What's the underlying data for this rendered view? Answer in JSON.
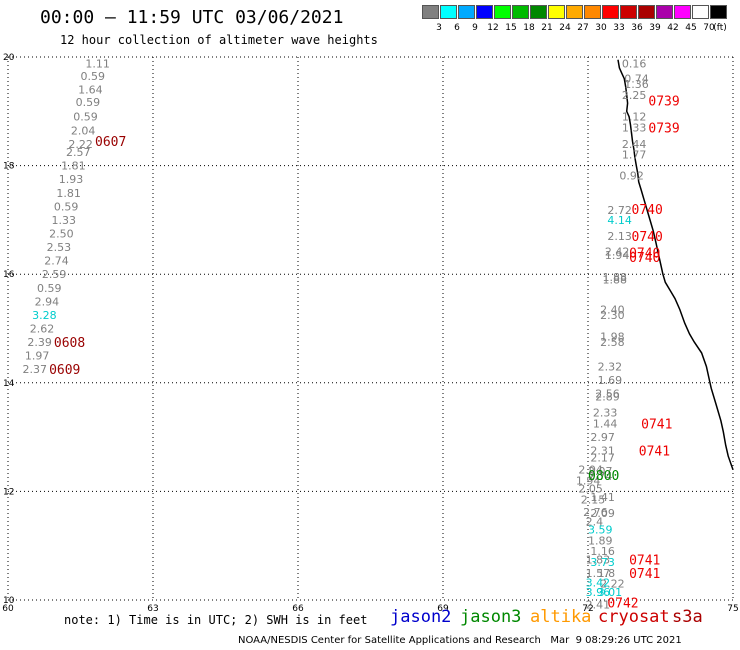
{
  "title": "00:00 – 11:59 UTC 03/06/2021",
  "subtitle": "12 hour collection of altimeter wave heights",
  "legend": {
    "colors": [
      "#808080",
      "#00ffff",
      "#00aaff",
      "#0000ff",
      "#00ff00",
      "#00bb00",
      "#008800",
      "#ffff00",
      "#ffaa00",
      "#ff8800",
      "#ff0000",
      "#cc0000",
      "#aa0000",
      "#aa00aa",
      "#ff00ff",
      "#ffffff",
      "#000000"
    ],
    "labels": [
      "3",
      "6",
      "9",
      "12",
      "15",
      "18",
      "21",
      "24",
      "27",
      "30",
      "33",
      "36",
      "39",
      "42",
      "45",
      "70",
      "(ft)"
    ]
  },
  "axes": {
    "x_ticks": [
      "60",
      "63",
      "66",
      "69",
      "72",
      "75"
    ],
    "y_ticks": [
      "10",
      "12",
      "14",
      "16",
      "18",
      "20"
    ],
    "x_range": [
      60,
      75
    ],
    "y_range": [
      10,
      20
    ]
  },
  "note": "note: 1) Time is in UTC; 2) SWH is in feet",
  "missions": [
    {
      "name": "jason2",
      "color": "#0000cc"
    },
    {
      "name": "jason3",
      "color": "#008800"
    },
    {
      "name": "altika",
      "color": "#ff9900"
    },
    {
      "name": "cryosat",
      "color": "#cc0000"
    },
    {
      "name": "s3a",
      "color": "#aa0000"
    }
  ],
  "credit": "NOAA/NESDIS Center for Satellite Applications and Research   Mar  9 08:29:26 UTC 2021",
  "track_west": {
    "color_default": "#808080",
    "points": [
      {
        "lon": 61.6,
        "lat": 19.88,
        "v": "1.11"
      },
      {
        "lon": 61.5,
        "lat": 19.65,
        "v": "0.59"
      },
      {
        "lon": 61.45,
        "lat": 19.4,
        "v": "1.64"
      },
      {
        "lon": 61.4,
        "lat": 19.17,
        "v": "0.59"
      },
      {
        "lon": 61.35,
        "lat": 18.9,
        "v": "0.59"
      },
      {
        "lon": 61.3,
        "lat": 18.65,
        "v": "2.04"
      },
      {
        "lon": 61.25,
        "lat": 18.4,
        "v": "2.22"
      },
      {
        "lon": 61.2,
        "lat": 18.25,
        "v": "2.57"
      },
      {
        "lon": 61.1,
        "lat": 18.0,
        "v": "1.81"
      },
      {
        "lon": 61.05,
        "lat": 17.75,
        "v": "1.93"
      },
      {
        "lon": 61.0,
        "lat": 17.5,
        "v": "1.81"
      },
      {
        "lon": 60.95,
        "lat": 17.25,
        "v": "0.59"
      },
      {
        "lon": 60.9,
        "lat": 17.0,
        "v": "1.33"
      },
      {
        "lon": 60.85,
        "lat": 16.75,
        "v": "2.50"
      },
      {
        "lon": 60.8,
        "lat": 16.5,
        "v": "2.53"
      },
      {
        "lon": 60.75,
        "lat": 16.25,
        "v": "2.74"
      },
      {
        "lon": 60.7,
        "lat": 16.0,
        "v": "2.59"
      },
      {
        "lon": 60.6,
        "lat": 15.75,
        "v": "0.59"
      },
      {
        "lon": 60.55,
        "lat": 15.5,
        "v": "2.94"
      },
      {
        "lon": 60.5,
        "lat": 15.25,
        "v": "3.28",
        "c": "#00cccc"
      },
      {
        "lon": 60.45,
        "lat": 15.0,
        "v": "2.62"
      },
      {
        "lon": 60.4,
        "lat": 14.75,
        "v": "2.39"
      },
      {
        "lon": 60.35,
        "lat": 14.5,
        "v": "1.97"
      },
      {
        "lon": 60.3,
        "lat": 14.25,
        "v": "2.37"
      }
    ],
    "times": [
      {
        "lon": 61.8,
        "lat": 18.45,
        "t": "0607",
        "c": "#990000"
      },
      {
        "lon": 60.95,
        "lat": 14.75,
        "t": "0608",
        "c": "#990000"
      },
      {
        "lon": 60.85,
        "lat": 14.25,
        "t": "0609",
        "c": "#990000"
      }
    ]
  },
  "track_east": {
    "color_default": "#808080",
    "points": [
      {
        "lon": 72.7,
        "lat": 19.88,
        "v": "0.16"
      },
      {
        "lon": 72.75,
        "lat": 19.6,
        "v": "0.74"
      },
      {
        "lon": 72.75,
        "lat": 19.5,
        "v": "1.36"
      },
      {
        "lon": 72.7,
        "lat": 19.3,
        "v": "2.25"
      },
      {
        "lon": 72.7,
        "lat": 18.9,
        "v": "1.12"
      },
      {
        "lon": 72.7,
        "lat": 18.7,
        "v": "1.33"
      },
      {
        "lon": 72.7,
        "lat": 18.4,
        "v": "2.44"
      },
      {
        "lon": 72.7,
        "lat": 18.2,
        "v": "1.77"
      },
      {
        "lon": 72.65,
        "lat": 17.82,
        "v": "0.92"
      },
      {
        "lon": 72.4,
        "lat": 17.18,
        "v": "2.72"
      },
      {
        "lon": 72.4,
        "lat": 17.0,
        "v": "4.14",
        "c": "#00cccc"
      },
      {
        "lon": 72.4,
        "lat": 16.7,
        "v": "2.13"
      },
      {
        "lon": 72.35,
        "lat": 16.42,
        "v": "2.42"
      },
      {
        "lon": 72.35,
        "lat": 16.35,
        "v": "1.94"
      },
      {
        "lon": 72.3,
        "lat": 15.95,
        "v": "1.88"
      },
      {
        "lon": 72.3,
        "lat": 15.9,
        "v": "1.88"
      },
      {
        "lon": 72.25,
        "lat": 15.35,
        "v": "2.40"
      },
      {
        "lon": 72.25,
        "lat": 15.25,
        "v": "2.30"
      },
      {
        "lon": 72.25,
        "lat": 14.85,
        "v": "1.98"
      },
      {
        "lon": 72.25,
        "lat": 14.75,
        "v": "2.58"
      },
      {
        "lon": 72.2,
        "lat": 14.3,
        "v": "2.32"
      },
      {
        "lon": 72.2,
        "lat": 14.05,
        "v": "1.69"
      },
      {
        "lon": 72.15,
        "lat": 13.8,
        "v": "2.56"
      },
      {
        "lon": 72.15,
        "lat": 13.75,
        "v": "2.89"
      },
      {
        "lon": 72.1,
        "lat": 13.45,
        "v": "2.33"
      },
      {
        "lon": 72.1,
        "lat": 13.25,
        "v": "1.44"
      },
      {
        "lon": 72.05,
        "lat": 13.0,
        "v": "2.97"
      },
      {
        "lon": 72.05,
        "lat": 12.75,
        "v": "2.31"
      },
      {
        "lon": 72.05,
        "lat": 12.62,
        "v": "2.17"
      },
      {
        "lon": 72.0,
        "lat": 12.38,
        "v": "2.07"
      },
      {
        "lon": 72.0,
        "lat": 12.28,
        "v": "2.74"
      },
      {
        "lon": 71.8,
        "lat": 12.4,
        "v": "2.04"
      },
      {
        "lon": 71.75,
        "lat": 12.2,
        "v": "1.94"
      },
      {
        "lon": 71.8,
        "lat": 12.05,
        "v": "2.05"
      },
      {
        "lon": 72.05,
        "lat": 11.9,
        "v": "1.41"
      },
      {
        "lon": 71.85,
        "lat": 11.85,
        "v": "2.15"
      },
      {
        "lon": 71.9,
        "lat": 11.62,
        "v": "2.76"
      },
      {
        "lon": 72.05,
        "lat": 11.6,
        "v": "2.09"
      },
      {
        "lon": 71.95,
        "lat": 11.45,
        "v": "2.4"
      },
      {
        "lon": 72.0,
        "lat": 11.3,
        "v": "3.59",
        "c": "#00cccc"
      },
      {
        "lon": 72.0,
        "lat": 11.1,
        "v": "1.89"
      },
      {
        "lon": 72.05,
        "lat": 10.9,
        "v": "1.16"
      },
      {
        "lon": 71.95,
        "lat": 10.75,
        "v": "1.83"
      },
      {
        "lon": 72.05,
        "lat": 10.7,
        "v": "3.73",
        "c": "#00cccc"
      },
      {
        "lon": 71.95,
        "lat": 10.5,
        "v": "1.57"
      },
      {
        "lon": 72.2,
        "lat": 10.5,
        "v": "1.8"
      },
      {
        "lon": 72.25,
        "lat": 10.3,
        "v": "2.22"
      },
      {
        "lon": 71.95,
        "lat": 10.32,
        "v": "3.42",
        "c": "#00cccc"
      },
      {
        "lon": 71.95,
        "lat": 10.15,
        "v": "3.96",
        "c": "#00cccc"
      },
      {
        "lon": 72.2,
        "lat": 10.15,
        "v": "3.01",
        "c": "#00cccc"
      },
      {
        "lon": 71.95,
        "lat": 9.92,
        "v": "2.41"
      }
    ],
    "times": [
      {
        "lon": 73.25,
        "lat": 19.2,
        "t": "0739",
        "c": "#ee0000"
      },
      {
        "lon": 73.25,
        "lat": 18.7,
        "t": "0739",
        "c": "#ee0000"
      },
      {
        "lon": 72.9,
        "lat": 17.2,
        "t": "0740",
        "c": "#ee0000"
      },
      {
        "lon": 72.9,
        "lat": 16.7,
        "t": "0740",
        "c": "#ee0000"
      },
      {
        "lon": 72.85,
        "lat": 16.4,
        "t": "0740",
        "c": "#ee0000"
      },
      {
        "lon": 72.85,
        "lat": 16.32,
        "t": "0740",
        "c": "#ee0000"
      },
      {
        "lon": 73.1,
        "lat": 13.25,
        "t": "0741",
        "c": "#ee0000"
      },
      {
        "lon": 73.05,
        "lat": 12.75,
        "t": "0741",
        "c": "#ee0000"
      },
      {
        "lon": 72.0,
        "lat": 12.3,
        "t": "0800",
        "c": "#008800"
      },
      {
        "lon": 72.85,
        "lat": 10.75,
        "t": "0741",
        "c": "#ee0000"
      },
      {
        "lon": 72.85,
        "lat": 10.5,
        "t": "0741",
        "c": "#ee0000"
      },
      {
        "lon": 72.4,
        "lat": 9.95,
        "t": "0742",
        "c": "#ee0000"
      }
    ]
  },
  "coastline": [
    [
      72.62,
      19.95
    ],
    [
      72.65,
      19.8
    ],
    [
      72.7,
      19.7
    ],
    [
      72.75,
      19.6
    ],
    [
      72.78,
      19.45
    ],
    [
      72.8,
      19.3
    ],
    [
      72.82,
      19.15
    ],
    [
      72.8,
      19.0
    ],
    [
      72.85,
      18.9
    ],
    [
      72.88,
      18.75
    ],
    [
      72.9,
      18.6
    ],
    [
      72.92,
      18.45
    ],
    [
      72.95,
      18.3
    ],
    [
      72.97,
      18.15
    ],
    [
      73.0,
      18.0
    ],
    [
      73.03,
      17.85
    ],
    [
      73.05,
      17.7
    ],
    [
      73.1,
      17.55
    ],
    [
      73.15,
      17.4
    ],
    [
      73.2,
      17.25
    ],
    [
      73.25,
      17.1
    ],
    [
      73.3,
      16.95
    ],
    [
      73.35,
      16.8
    ],
    [
      73.4,
      16.6
    ],
    [
      73.45,
      16.4
    ],
    [
      73.5,
      16.2
    ],
    [
      73.55,
      16.0
    ],
    [
      73.6,
      15.85
    ],
    [
      73.7,
      15.7
    ],
    [
      73.8,
      15.55
    ],
    [
      73.9,
      15.35
    ],
    [
      74.0,
      15.1
    ],
    [
      74.1,
      14.9
    ],
    [
      74.2,
      14.75
    ],
    [
      74.35,
      14.55
    ],
    [
      74.45,
      14.3
    ],
    [
      74.5,
      14.1
    ],
    [
      74.55,
      13.9
    ],
    [
      74.65,
      13.6
    ],
    [
      74.75,
      13.3
    ],
    [
      74.8,
      13.1
    ],
    [
      74.85,
      12.85
    ],
    [
      74.9,
      12.65
    ],
    [
      75.0,
      12.4
    ]
  ]
}
